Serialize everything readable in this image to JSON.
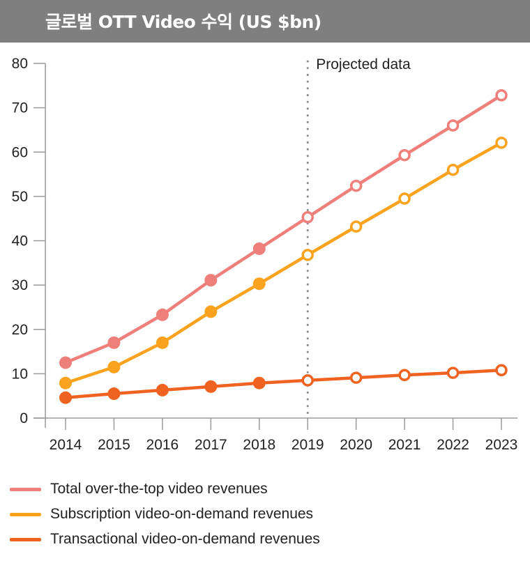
{
  "header": {
    "title": "글로벌 OTT Video 수익 (US $bn)"
  },
  "chart_data": {
    "type": "line",
    "title": "글로벌 OTT Video 수익 (US $bn)",
    "xlabel": "",
    "ylabel": "",
    "x": [
      "2014",
      "2015",
      "2016",
      "2017",
      "2018",
      "2019",
      "2020",
      "2021",
      "2022",
      "2023"
    ],
    "ylim": [
      0,
      80
    ],
    "yticks": [
      "0",
      "10",
      "20",
      "30",
      "40",
      "50",
      "60",
      "70",
      "80"
    ],
    "grid": false,
    "projection_start": "2019",
    "annotation": "Projected data",
    "legend_position": "bottom-left",
    "series": [
      {
        "name": "Total over-the-top video revenues",
        "color": "#ef7f7b",
        "values": [
          12.5,
          17.0,
          23.3,
          31.1,
          38.2,
          45.3,
          52.4,
          59.3,
          66.0,
          72.8
        ]
      },
      {
        "name": "Subscription video-on-demand revenues",
        "color": "#fba21e",
        "values": [
          7.9,
          11.5,
          17.0,
          24.0,
          30.3,
          36.8,
          43.2,
          49.5,
          56.0,
          62.1
        ]
      },
      {
        "name": "Transactional video-on-demand revenues",
        "color": "#ef6220",
        "values": [
          4.6,
          5.5,
          6.3,
          7.1,
          7.9,
          8.5,
          9.1,
          9.7,
          10.2,
          10.8
        ]
      }
    ]
  }
}
